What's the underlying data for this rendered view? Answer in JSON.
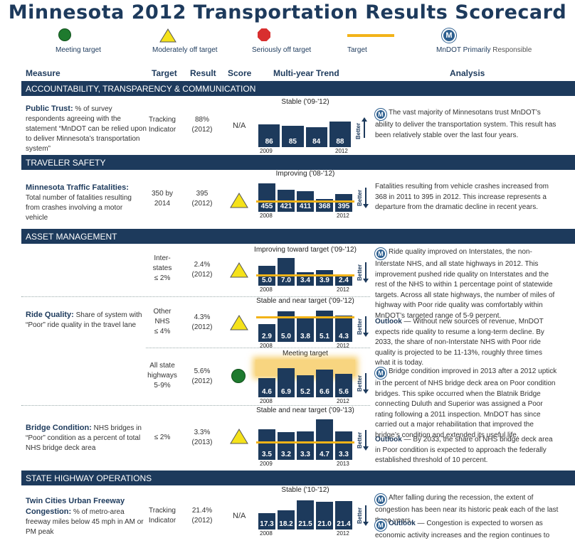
{
  "title": "Minnesota 2012 Transportation Results Scorecard",
  "legend": {
    "meeting": "Meeting target",
    "moderate": "Moderately off target",
    "serious": "Seriously off target",
    "target": "Target",
    "mndot_primary": "MnDOT Primarily",
    "responsible": "Responsible"
  },
  "columns": {
    "measure": "Measure",
    "target": "Target",
    "result": "Result",
    "score": "Score",
    "trend": "Multi-year Trend",
    "analysis": "Analysis"
  },
  "sections": {
    "accountability": "ACCOUNTABILITY, TRANSPARENCY & COMMUNICATION",
    "safety": "TRAVELER SAFETY",
    "asset": "ASSET MANAGEMENT",
    "operations": "STATE HIGHWAY OPERATIONS"
  },
  "better_label": "Better",
  "colors": {
    "navy": "#1d3a5c",
    "target": "#f2b318",
    "green": "#1e7a2e",
    "yellow": "#f5e21a",
    "red": "#d82f2f"
  },
  "rows": {
    "trust": {
      "measure_title": "Public Trust:",
      "measure_desc": "% of survey respondents agreeing with the statement “MnDOT can be relied upon to deliver Minnesota’s transportation system”",
      "target_l1": "Tracking",
      "target_l2": "Indicator",
      "result_l1": "88%",
      "result_l2": "(2012)",
      "score": "N/A",
      "analysis": "The vast majority of Minnesotans trust MnDOT’s ability to deliver the transportation system. This result has been relatively stable over the last four years."
    },
    "fatalities": {
      "measure_title": "Minnesota Traffic Fatalities:",
      "measure_desc": "Total number of fatalities resulting from crashes involving a motor vehicle",
      "target_l1": "350 by",
      "target_l2": "2014",
      "result_l1": "395",
      "result_l2": "(2012)",
      "analysis": "Fatalities resulting from vehicle crashes increased from 368 in 2011 to 395 in 2012. This increase represents a departure from the dramatic decline in recent years."
    },
    "ride": {
      "measure_title": "Ride Quality:",
      "measure_desc": "Share of system with “Poor” ride quality in the travel lane",
      "interstate_target_l1": "Inter-",
      "interstate_target_l2": "states",
      "interstate_target_l3": "≤ 2%",
      "interstate_result_l1": "2.4%",
      "interstate_result_l2": "(2012)",
      "nhs_target_l1": "Other",
      "nhs_target_l2": "NHS",
      "nhs_target_l3": "≤ 4%",
      "nhs_result_l1": "4.3%",
      "nhs_result_l2": "(2012)",
      "all_target_l1": "All state",
      "all_target_l2": "highways",
      "all_target_l3": "5-9%",
      "all_result_l1": "5.6%",
      "all_result_l2": "(2012)",
      "analysis": "Ride quality improved on Interstates, the non-Interstate NHS, and all state highways in 2012. This improvement pushed ride quality on Interstates and the rest of the NHS to within 1 percentage point of statewide targets. Across all state highways, the number of miles of highway with Poor ride quality was comfortably within MnDOT’s targeted range of 5-9 percent.",
      "outlook_label": "Outlook",
      "outlook": " — Without new sources of revenue, MnDOT expects ride quality to resume a long-term decline. By 2033, the share of non-Interstate NHS with Poor ride quality is projected to be 11-13%, roughly three times what it is today."
    },
    "bridge": {
      "measure_title": "Bridge Condition:",
      "measure_desc": "NHS bridges in “Poor” condition as a percent of total NHS bridge deck area",
      "target_l1": "≤ 2%",
      "result_l1": "3.3%",
      "result_l2": "(2013)",
      "analysis": "Bridge condition improved in 2013 after a 2012 uptick in the percent of NHS bridge deck area on Poor condition bridges. This spike occurred when the Blatnik Bridge connecting Duluth and Superior was assigned a Poor rating following a 2011 inspection. MnDOT has since carried out a major rehabilitation that improved the bridge’s condition and extended its useful life.",
      "outlook_label": "Outlook",
      "outlook": " — By 2033, the share of NHS bridge deck area in Poor condition is expected to approach the federally established threshold of 10 percent."
    },
    "congestion": {
      "measure_title": "Twin Cities Urban Freeway Congestion:",
      "measure_desc": "% of metro-area freeway miles below 45 mph in AM or PM peak",
      "target_l1": "Tracking",
      "target_l2": "Indicator",
      "result_l1": "21.4%",
      "result_l2": "(2012)",
      "score": "N/A",
      "analysis": "After falling during the recession, the extent of congestion has been near its historic peak each of the last three years.",
      "outlook_label": "Outlook",
      "outlook": " — Congestion is expected to worsen as economic activity increases and the region continues to grow."
    }
  },
  "chart_data": [
    {
      "type": "bar",
      "title": "Stable ('09-'12)",
      "categories": [
        "2009",
        "2010",
        "2011",
        "2012"
      ],
      "values": [
        86,
        85,
        84,
        88
      ],
      "value_labels": [
        "86",
        "85",
        "84",
        "88"
      ],
      "x_start": "2009",
      "x_end": "2012",
      "better": "up"
    },
    {
      "type": "bar",
      "title": "Improving ('08-'12)",
      "categories": [
        "2008",
        "2009",
        "2010",
        "2011",
        "2012"
      ],
      "values": [
        455,
        421,
        411,
        368,
        395
      ],
      "value_labels": [
        "455",
        "421",
        "411",
        "368",
        "395"
      ],
      "x_start": "2008",
      "x_end": "2012",
      "better": "down",
      "target": 350
    },
    {
      "type": "bar",
      "title": "Improving toward target ('09-'12)",
      "categories": [
        "2008",
        "2009",
        "2010",
        "2011",
        "2012"
      ],
      "values": [
        5.0,
        7.0,
        3.4,
        3.9,
        2.4
      ],
      "value_labels": [
        "5.0",
        "7.0",
        "3.4",
        "3.9",
        "2.4"
      ],
      "x_start": "2008",
      "x_end": "2012",
      "better": "down",
      "target": 2
    },
    {
      "type": "bar",
      "title": "Stable and near target ('09-'12)",
      "categories": [
        "2008",
        "2009",
        "2010",
        "2011",
        "2012"
      ],
      "values": [
        2.9,
        5.0,
        3.8,
        5.1,
        4.3
      ],
      "value_labels": [
        "2.9",
        "5.0",
        "3.8",
        "5.1",
        "4.3"
      ],
      "x_start": "2008",
      "x_end": "2012",
      "better": "down",
      "target": 4
    },
    {
      "type": "bar",
      "title": "Meeting target",
      "categories": [
        "2008",
        "2009",
        "2010",
        "2011",
        "2012"
      ],
      "values": [
        4.6,
        6.9,
        5.2,
        6.6,
        5.6
      ],
      "value_labels": [
        "4.6",
        "6.9",
        "5.2",
        "6.6",
        "5.6"
      ],
      "x_start": "2008",
      "x_end": "2012",
      "better": "down",
      "target_range": [
        5,
        9
      ]
    },
    {
      "type": "bar",
      "title": "Stable and near target ('09-'13)",
      "categories": [
        "2009",
        "2010",
        "2011",
        "2012",
        "2013"
      ],
      "values": [
        3.5,
        3.2,
        3.3,
        4.7,
        3.3
      ],
      "value_labels": [
        "3.5",
        "3.2",
        "3.3",
        "4.7",
        "3.3"
      ],
      "x_start": "2009",
      "x_end": "2013",
      "better": "down",
      "target": 2
    },
    {
      "type": "bar",
      "title": "Stable ('10-'12)",
      "categories": [
        "2008",
        "2009",
        "2010",
        "2011",
        "2012"
      ],
      "values": [
        17.3,
        18.2,
        21.5,
        21.0,
        21.4
      ],
      "value_labels": [
        "17.3",
        "18.2",
        "21.5",
        "21.0",
        "21.4"
      ],
      "x_start": "2008",
      "x_end": "2012",
      "better": "down"
    }
  ]
}
